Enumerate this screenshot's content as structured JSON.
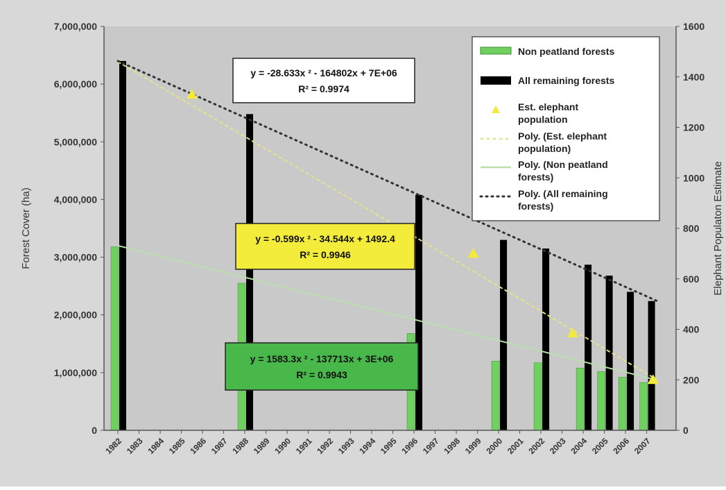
{
  "chart_data": {
    "type": "bar",
    "title": "",
    "xlabel": "",
    "ylabel": "Forest Cover (ha)",
    "y2label": "Elephant Populaton Estimate",
    "ylim": [
      0,
      7000000
    ],
    "y2lim": [
      0,
      1600
    ],
    "grid": false,
    "legend_position": "top-right",
    "x_tick_labels": [
      "1982",
      "1983",
      "1984",
      "1985",
      "1986",
      "1987",
      "1988",
      "1989",
      "1990",
      "1991",
      "1992",
      "1993",
      "1994",
      "1995",
      "1996",
      "1997",
      "1998",
      "1999",
      "2000",
      "2001",
      "2002",
      "2003",
      "2004",
      "2005",
      "2006",
      "2007"
    ],
    "y_tick_labels": [
      "0",
      "1,000,000",
      "2,000,000",
      "3,000,000",
      "4,000,000",
      "5,000,000",
      "6,000,000",
      "7,000,000"
    ],
    "y2_tick_labels": [
      "0",
      "200",
      "400",
      "600",
      "800",
      "1000",
      "1200",
      "1400",
      "1600"
    ],
    "bar_years": [
      1982,
      1988,
      1996,
      2000,
      2002,
      2004,
      2005,
      2006,
      2007
    ],
    "series": [
      {
        "name": "Non peatland forests",
        "type": "bar",
        "axis": "left",
        "color": "#6fcf5f",
        "values": [
          3180000,
          2550000,
          1680000,
          1200000,
          1170000,
          1080000,
          1020000,
          920000,
          830000
        ]
      },
      {
        "name": "All remaining forests",
        "type": "bar",
        "axis": "left",
        "color": "#000000",
        "values": [
          6400000,
          5480000,
          4080000,
          3300000,
          3150000,
          2870000,
          2680000,
          2400000,
          2240000
        ]
      },
      {
        "name": "Est. elephant population",
        "type": "scatter",
        "axis": "right",
        "color": "#f2ea3c",
        "x": [
          1985.5,
          1998.8,
          2003.5,
          2007.3
        ],
        "values": [
          1330,
          700,
          385,
          200
        ]
      },
      {
        "name": "Poly. (Est. elephant population)",
        "type": "trend",
        "axis": "right",
        "color": "#e4e48a",
        "x": [
          1982,
          2007.5
        ],
        "values": [
          1460,
          200
        ]
      },
      {
        "name": "Poly. (Non peatland forests)",
        "type": "trend",
        "axis": "left",
        "color": "#b8e0a8",
        "x": [
          1982,
          2007.5
        ],
        "values": [
          3200000,
          870000
        ]
      },
      {
        "name": "Poly. (All remaining forests)",
        "type": "trend",
        "axis": "left",
        "color": "#333333",
        "x": [
          1982,
          2007.5
        ],
        "values": [
          6400000,
          2240000
        ]
      }
    ],
    "annotations": [
      {
        "id": "eq-forest",
        "line1": "y = -28.633x ² - 164802x + 7E+06",
        "line2": "R² = 0.9974",
        "fill": "#ffffff"
      },
      {
        "id": "eq-elephant",
        "line1": "y = -0.599x ² - 34.544x + 1492.4",
        "line2": "R² = 0.9946",
        "fill": "#f4ec3a"
      },
      {
        "id": "eq-nonpeat",
        "line1": "y = 1583.3x ² - 137713x + 3E+06",
        "line2": "R² = 0.9943",
        "fill": "#49b84a"
      }
    ],
    "legend": [
      {
        "label": "Non peatland forests",
        "symbol": "bar-green"
      },
      {
        "label": "All remaining forests",
        "symbol": "bar-black"
      },
      {
        "label": "Est. elephant\npopulation",
        "symbol": "triangle-yellow"
      },
      {
        "label": "Poly. (Est. elephant\npopulation)",
        "symbol": "dash-yellow"
      },
      {
        "label": "Poly. (Non peatland\nforests)",
        "symbol": "line-green"
      },
      {
        "label": "Poly. (All remaining\nforests)",
        "symbol": "dot-black"
      }
    ]
  }
}
